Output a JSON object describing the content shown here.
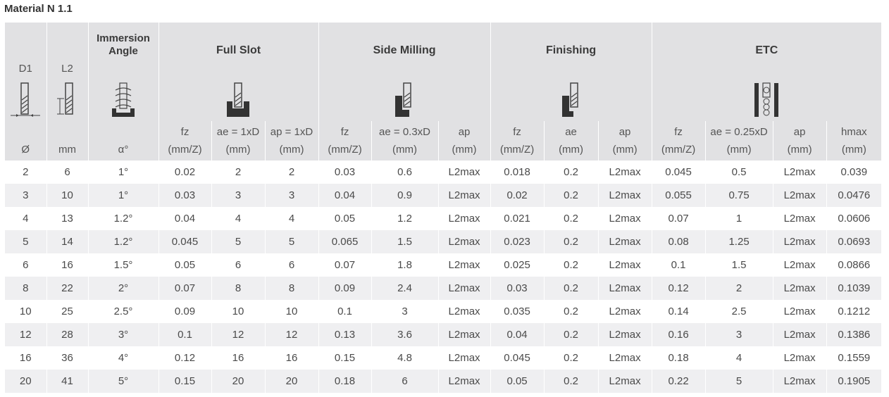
{
  "title": "Material N 1.1",
  "groups": {
    "d1": "D1",
    "l2": "L2",
    "immersion_line1": "Immersion",
    "immersion_line2": "Angle",
    "full_slot": "Full Slot",
    "side_milling": "Side Milling",
    "finishing": "Finishing",
    "etc": "ETC"
  },
  "units": [
    {
      "l1": "",
      "l2": "Ø"
    },
    {
      "l1": "",
      "l2": "mm"
    },
    {
      "l1": "",
      "l2": "α°"
    },
    {
      "l1": "fz",
      "l2": "(mm/Z)"
    },
    {
      "l1": "ae = 1xD",
      "l2": "(mm)"
    },
    {
      "l1": "ap = 1xD",
      "l2": "(mm)"
    },
    {
      "l1": "fz",
      "l2": "(mm/Z)"
    },
    {
      "l1": "ae = 0.3xD",
      "l2": "(mm)"
    },
    {
      "l1": "ap",
      "l2": "(mm)"
    },
    {
      "l1": "fz",
      "l2": "(mm/Z)"
    },
    {
      "l1": "ae",
      "l2": "(mm)"
    },
    {
      "l1": "ap",
      "l2": "(mm)"
    },
    {
      "l1": "fz",
      "l2": "(mm/Z)"
    },
    {
      "l1": "ae = 0.25xD",
      "l2": "(mm)"
    },
    {
      "l1": "ap",
      "l2": "(mm)"
    },
    {
      "l1": "hmax",
      "l2": "(mm)"
    }
  ],
  "rows": [
    [
      "2",
      "6",
      "1°",
      "0.02",
      "2",
      "2",
      "0.03",
      "0.6",
      "L2max",
      "0.018",
      "0.2",
      "L2max",
      "0.045",
      "0.5",
      "L2max",
      "0.039"
    ],
    [
      "3",
      "10",
      "1°",
      "0.03",
      "3",
      "3",
      "0.04",
      "0.9",
      "L2max",
      "0.02",
      "0.2",
      "L2max",
      "0.055",
      "0.75",
      "L2max",
      "0.0476"
    ],
    [
      "4",
      "13",
      "1.2°",
      "0.04",
      "4",
      "4",
      "0.05",
      "1.2",
      "L2max",
      "0.021",
      "0.2",
      "L2max",
      "0.07",
      "1",
      "L2max",
      "0.0606"
    ],
    [
      "5",
      "14",
      "1.2°",
      "0.045",
      "5",
      "5",
      "0.065",
      "1.5",
      "L2max",
      "0.023",
      "0.2",
      "L2max",
      "0.08",
      "1.25",
      "L2max",
      "0.0693"
    ],
    [
      "6",
      "16",
      "1.5°",
      "0.05",
      "6",
      "6",
      "0.07",
      "1.8",
      "L2max",
      "0.025",
      "0.2",
      "L2max",
      "0.1",
      "1.5",
      "L2max",
      "0.0866"
    ],
    [
      "8",
      "22",
      "2°",
      "0.07",
      "8",
      "8",
      "0.09",
      "2.4",
      "L2max",
      "0.03",
      "0.2",
      "L2max",
      "0.12",
      "2",
      "L2max",
      "0.1039"
    ],
    [
      "10",
      "25",
      "2.5°",
      "0.09",
      "10",
      "10",
      "0.1",
      "3",
      "L2max",
      "0.035",
      "0.2",
      "L2max",
      "0.14",
      "2.5",
      "L2max",
      "0.1212"
    ],
    [
      "12",
      "28",
      "3°",
      "0.1",
      "12",
      "12",
      "0.13",
      "3.6",
      "L2max",
      "0.04",
      "0.2",
      "L2max",
      "0.16",
      "3",
      "L2max",
      "0.1386"
    ],
    [
      "16",
      "36",
      "4°",
      "0.12",
      "16",
      "16",
      "0.15",
      "4.8",
      "L2max",
      "0.045",
      "0.2",
      "L2max",
      "0.18",
      "4",
      "L2max",
      "0.1559"
    ],
    [
      "20",
      "41",
      "5°",
      "0.15",
      "20",
      "20",
      "0.18",
      "6",
      "L2max",
      "0.05",
      "0.2",
      "L2max",
      "0.22",
      "5",
      "L2max",
      "0.1905"
    ]
  ]
}
